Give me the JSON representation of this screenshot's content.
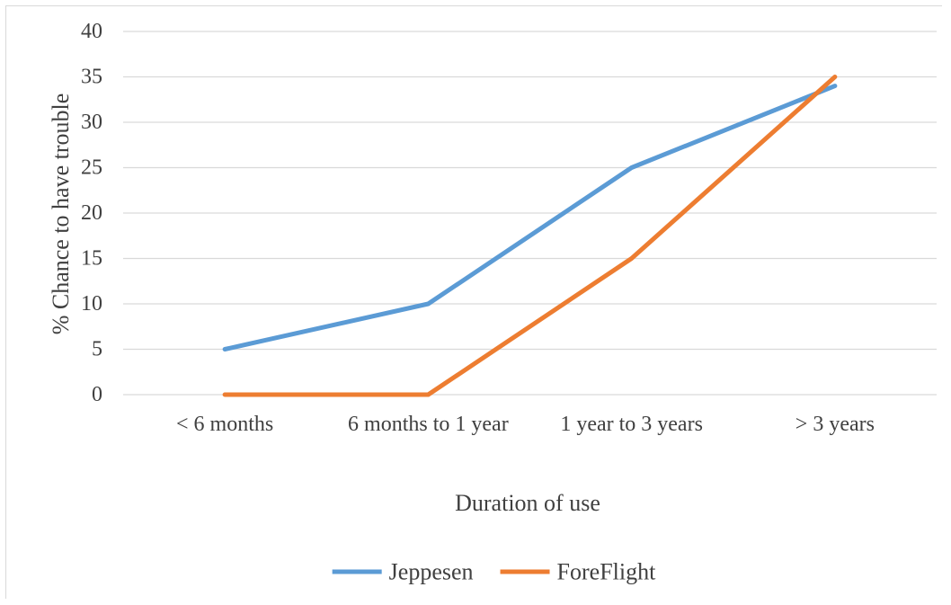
{
  "chart_data": {
    "type": "line",
    "title": "",
    "xlabel": "Duration of use",
    "ylabel": "% Chance to have trouble",
    "categories": [
      "< 6 months",
      "6 months to 1 year",
      "1 year to 3 years",
      "> 3 years"
    ],
    "ylim": [
      0,
      40
    ],
    "yticks": [
      0,
      5,
      10,
      15,
      20,
      25,
      30,
      35,
      40
    ],
    "grid": true,
    "legend_position": "bottom",
    "series": [
      {
        "name": "Jeppesen",
        "values": [
          5,
          10,
          25,
          34
        ],
        "color": "#5b9bd5"
      },
      {
        "name": "ForeFlight",
        "values": [
          0,
          0,
          15,
          35
        ],
        "color": "#ed7d31"
      }
    ]
  }
}
